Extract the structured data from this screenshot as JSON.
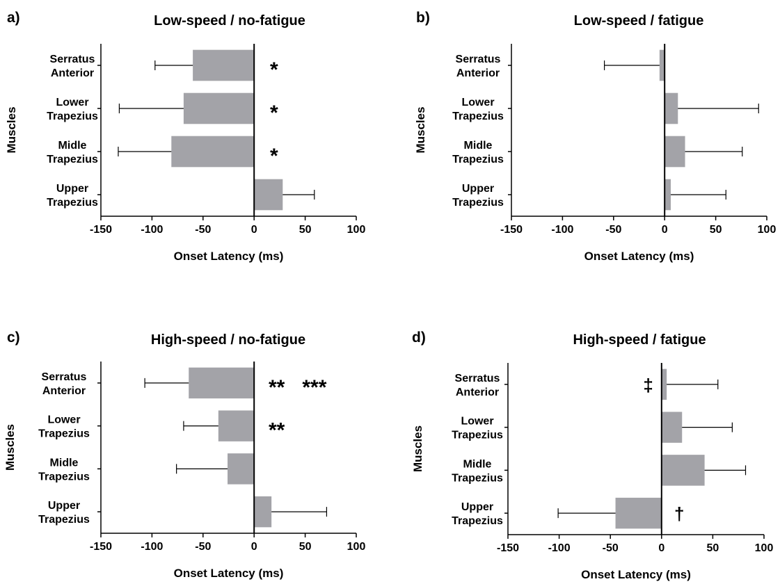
{
  "chart_data": [
    {
      "type": "bar",
      "orientation": "horizontal",
      "panel_label": "a)",
      "title": "Low-speed / no-fatigue",
      "xlabel": "Onset Latency (ms)",
      "ylabel": "Muscles",
      "xlim": [
        -150,
        100
      ],
      "xticks": [
        "-150",
        "-100",
        "-50",
        "0",
        "50",
        "100"
      ],
      "categories": [
        [
          "Serratus",
          "Anterior"
        ],
        [
          "Lower",
          "Trapezius"
        ],
        [
          "Midle",
          "Trapezius"
        ],
        [
          "Upper",
          "Trapezius"
        ]
      ],
      "values": [
        -60,
        -69,
        -81,
        28
      ],
      "errors": [
        37,
        63,
        52,
        31
      ],
      "annotations": [
        "*",
        "*",
        "*",
        ""
      ],
      "bar_color": "#a3a3a8"
    },
    {
      "type": "bar",
      "orientation": "horizontal",
      "panel_label": "b)",
      "title": "Low-speed / fatigue",
      "xlabel": "Onset Latency (ms)",
      "ylabel": "Muscles",
      "xlim": [
        -150,
        100
      ],
      "xticks": [
        "-150",
        "-100",
        "-50",
        "0",
        "50",
        "100"
      ],
      "categories": [
        [
          "Serratus",
          "Anterior"
        ],
        [
          "Lower",
          "Trapezius"
        ],
        [
          "Midle",
          "Trapezius"
        ],
        [
          "Upper",
          "Trapezius"
        ]
      ],
      "values": [
        -5,
        13,
        20,
        6
      ],
      "errors": [
        54,
        79,
        56,
        54
      ],
      "annotations": [
        "",
        "",
        "",
        ""
      ],
      "bar_color": "#a3a3a8"
    },
    {
      "type": "bar",
      "orientation": "horizontal",
      "panel_label": "c)",
      "title": "High-speed / no-fatigue",
      "xlabel": "Onset Latency (ms)",
      "ylabel": "Muscles",
      "xlim": [
        -150,
        100
      ],
      "xticks": [
        "-150",
        "-100",
        "-50",
        "0",
        "50",
        "100"
      ],
      "categories": [
        [
          "Serratus",
          "Anterior"
        ],
        [
          "Lower",
          "Trapezius"
        ],
        [
          "Midle",
          "Trapezius"
        ],
        [
          "Upper",
          "Trapezius"
        ]
      ],
      "values": [
        -64,
        -35,
        -26,
        17
      ],
      "errors": [
        43,
        34,
        50,
        54
      ],
      "annotations": [
        "**   ***",
        "**",
        "",
        ""
      ],
      "bar_color": "#a3a3a8"
    },
    {
      "type": "bar",
      "orientation": "horizontal",
      "panel_label": "d)",
      "title": "High-speed / fatigue",
      "xlabel": "Onset Latency (ms)",
      "ylabel": "Muscles",
      "xlim": [
        -150,
        100
      ],
      "xticks": [
        "-150",
        "-100",
        "-50",
        "0",
        "50",
        "100"
      ],
      "categories": [
        [
          "Serratus",
          "Anterior"
        ],
        [
          "Lower",
          "Trapezius"
        ],
        [
          "Midle",
          "Trapezius"
        ],
        [
          "Upper",
          "Trapezius"
        ]
      ],
      "values": [
        5,
        20,
        42,
        -45
      ],
      "errors": [
        50,
        49,
        40,
        56
      ],
      "annotations": [
        "‡",
        "",
        "",
        "†"
      ],
      "annotation_side": [
        "left",
        "right",
        "right",
        "right"
      ],
      "bar_color": "#a3a3a8"
    }
  ]
}
